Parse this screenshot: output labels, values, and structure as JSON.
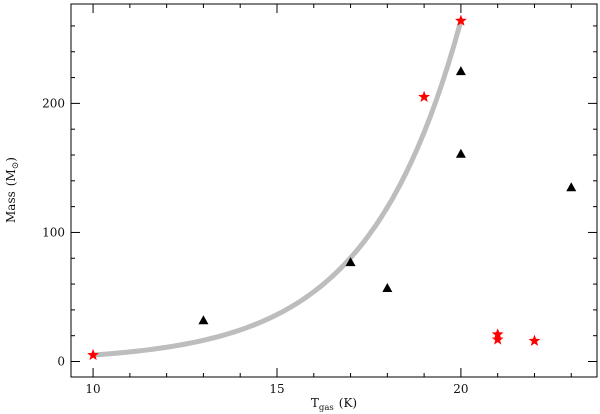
{
  "chart_data": {
    "type": "scatter",
    "title": "",
    "xlabel": {
      "main": "T",
      "sub": "gas",
      "unit": "(K)"
    },
    "ylabel": {
      "main": "Mass",
      "unit_open": "(M",
      "unit_symbol": "⊙",
      "unit_close": ")"
    },
    "xlim": [
      9.4,
      23.7
    ],
    "ylim": [
      -12,
      277
    ],
    "x_ticks": [
      10,
      15,
      20
    ],
    "y_ticks": [
      0,
      100,
      200
    ],
    "x_minor_step": 1,
    "y_minor_step": 20,
    "grid": false,
    "legend": "none",
    "series": [
      {
        "marker": "triangle",
        "color": "#000000",
        "points": [
          {
            "x": 13,
            "y": 32
          },
          {
            "x": 17,
            "y": 77
          },
          {
            "x": 18,
            "y": 57
          },
          {
            "x": 20,
            "y": 225
          },
          {
            "x": 20,
            "y": 161
          },
          {
            "x": 23,
            "y": 135
          }
        ]
      },
      {
        "marker": "star",
        "color": "#ff0000",
        "points": [
          {
            "x": 10,
            "y": 5
          },
          {
            "x": 19,
            "y": 205
          },
          {
            "x": 20,
            "y": 264
          },
          {
            "x": 21,
            "y": 21
          },
          {
            "x": 21,
            "y": 17
          },
          {
            "x": 22,
            "y": 16
          }
        ]
      }
    ],
    "fit_curve": {
      "shape": "exponential",
      "color": "#bdbdbd",
      "x_range": [
        10,
        20
      ],
      "y_start": 5,
      "y_end": 264
    }
  }
}
